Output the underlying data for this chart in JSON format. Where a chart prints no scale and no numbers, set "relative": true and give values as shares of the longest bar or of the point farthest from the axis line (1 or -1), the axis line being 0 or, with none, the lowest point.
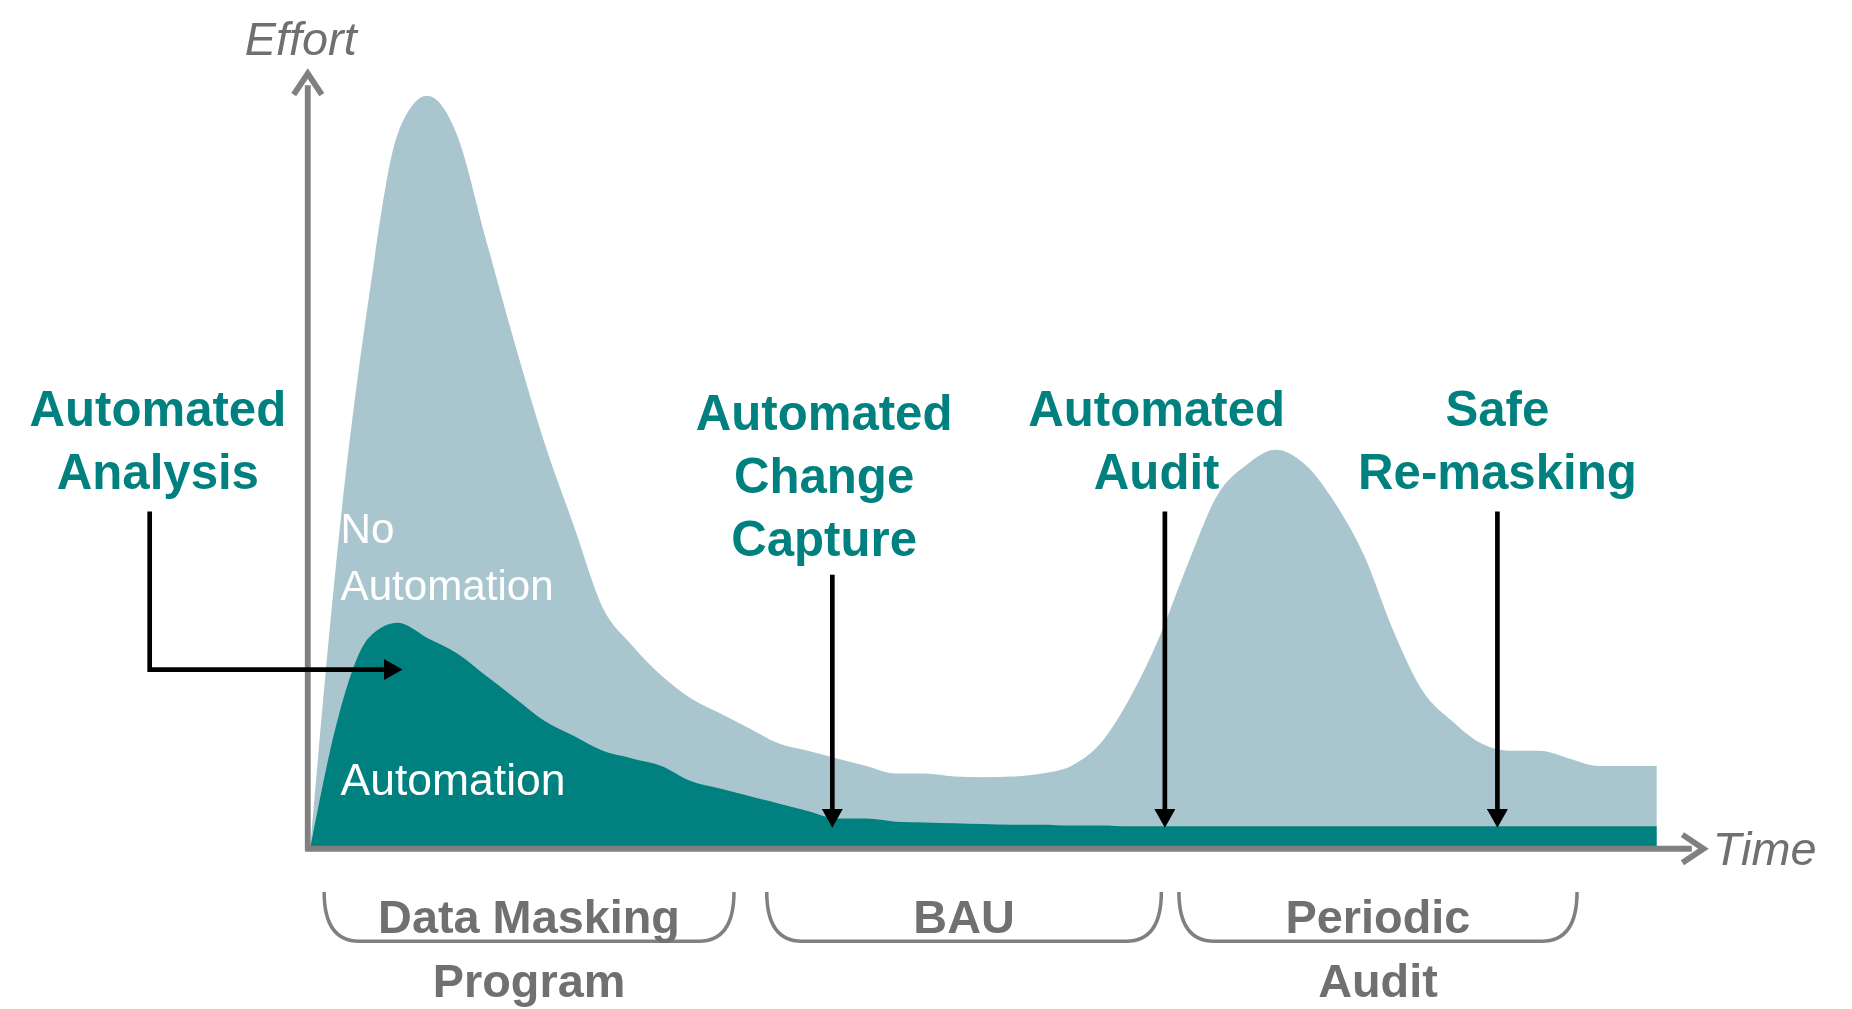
{
  "chart_data": {
    "type": "area",
    "relative": true,
    "xlabel": "Time",
    "ylabel": "Effort",
    "categories": [
      null,
      null,
      null,
      null,
      null,
      null,
      null,
      null,
      null,
      null,
      null,
      null,
      null,
      null,
      null,
      null,
      null,
      null,
      null,
      null,
      null,
      null,
      null,
      null,
      null,
      null,
      null,
      null,
      null,
      null,
      null,
      null,
      null,
      null,
      null,
      null,
      null,
      null,
      null,
      null,
      null,
      null,
      null,
      null,
      null,
      null,
      null
    ],
    "series": [
      {
        "name": "No Automation",
        "color": "#a9c6cf",
        "values": [
          0,
          0.42,
          0.73,
          0.95,
          1.0,
          0.95,
          0.81,
          0.67,
          0.54,
          0.43,
          0.32,
          0.27,
          0.23,
          0.2,
          0.18,
          0.16,
          0.14,
          0.13,
          0.12,
          0.11,
          0.1,
          0.1,
          0.096,
          0.095,
          0.096,
          0.1,
          0.11,
          0.14,
          0.2,
          0.28,
          0.38,
          0.47,
          0.51,
          0.53,
          0.51,
          0.46,
          0.39,
          0.29,
          0.21,
          0.17,
          0.14,
          0.13,
          0.13,
          0.12,
          0.11,
          0.11,
          0.11
        ]
      },
      {
        "name": "Automation",
        "color": "#00807e",
        "values": [
          0,
          0.18,
          0.28,
          0.3,
          0.28,
          0.26,
          0.23,
          0.2,
          0.17,
          0.15,
          0.13,
          0.12,
          0.11,
          0.09,
          0.08,
          0.07,
          0.06,
          0.05,
          0.04,
          0.04,
          0.036,
          0.035,
          0.034,
          0.033,
          0.032,
          0.032,
          0.031,
          0.031,
          0.03,
          0.03,
          0.03,
          0.03,
          0.03,
          0.03,
          0.03,
          0.03,
          0.03,
          0.03,
          0.03,
          0.03,
          0.03,
          0.03,
          0.03,
          0.03,
          0.03,
          0.03,
          0.03
        ]
      }
    ],
    "annotations": [
      "Automated\nAnalysis",
      "Automated\nChange\nCapture",
      "Automated\nAudit",
      "Safe\nRe-masking",
      "Data Masking\nProgram",
      "BAU",
      "Periodic\nAudit"
    ]
  }
}
